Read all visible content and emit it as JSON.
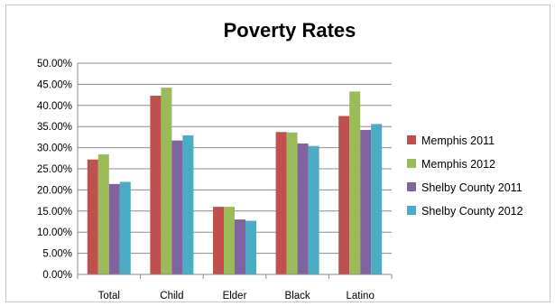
{
  "chart_data": {
    "type": "bar",
    "title": "Poverty Rates",
    "xlabel": "",
    "ylabel": "",
    "categories": [
      "Total",
      "Child",
      "Elder",
      "Black",
      "Latino"
    ],
    "series": [
      {
        "name": "Memphis 2011",
        "color": "#c0504d",
        "values": [
          27.2,
          42.3,
          16.0,
          33.7,
          37.5
        ]
      },
      {
        "name": "Memphis 2012",
        "color": "#9bbb59",
        "values": [
          28.4,
          44.2,
          16.0,
          33.6,
          43.3
        ]
      },
      {
        "name": "Shelby County 2011",
        "color": "#8064a2",
        "values": [
          21.4,
          31.7,
          13.0,
          31.0,
          34.2
        ]
      },
      {
        "name": "Shelby County 2012",
        "color": "#4bacc6",
        "values": [
          21.9,
          32.9,
          12.7,
          30.4,
          35.6
        ]
      }
    ],
    "ylim": [
      0,
      50
    ],
    "yticks": [
      "0.00%",
      "5.00%",
      "10.00%",
      "15.00%",
      "20.00%",
      "25.00%",
      "30.00%",
      "35.00%",
      "40.00%",
      "45.00%",
      "50.00%"
    ],
    "grid": true,
    "legend": "right"
  }
}
